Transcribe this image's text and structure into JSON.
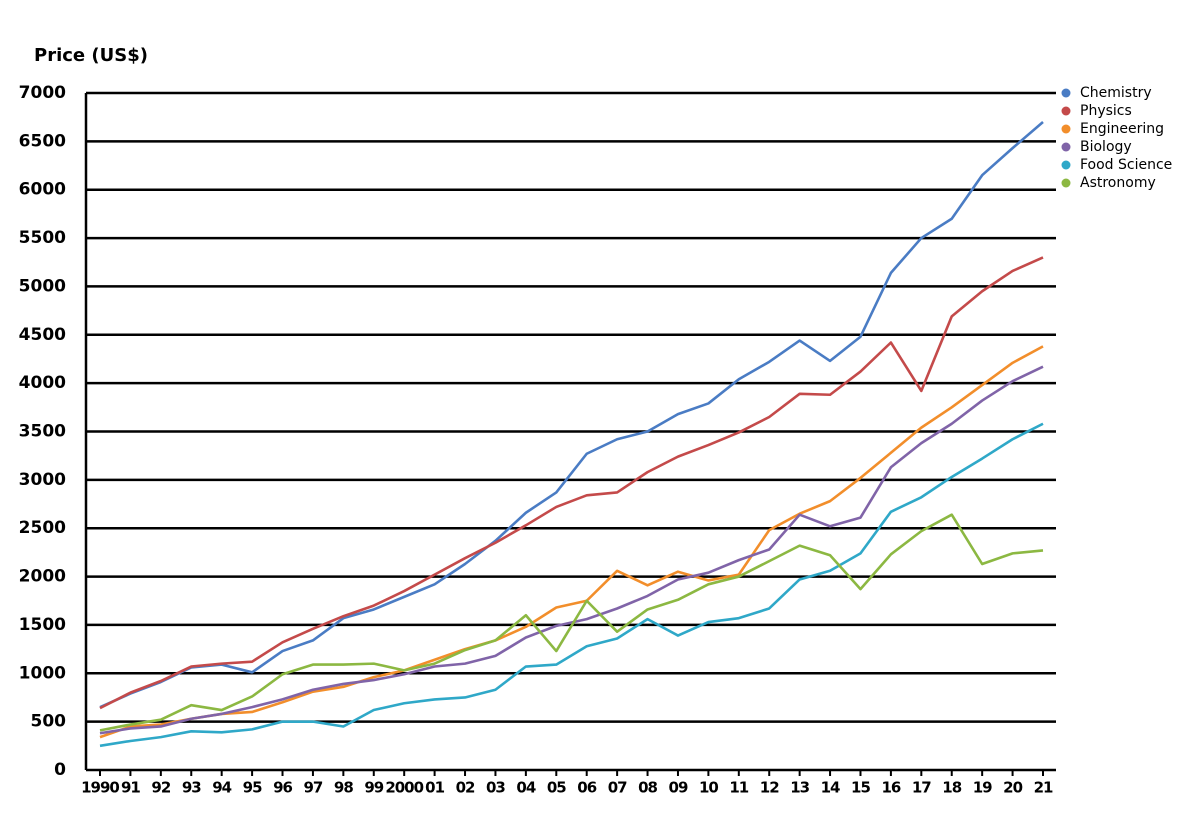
{
  "chart_data": {
    "type": "line",
    "y_label": "Price (US$)",
    "categories": [
      "1990",
      "91",
      "92",
      "93",
      "94",
      "95",
      "96",
      "97",
      "98",
      "99",
      "2000",
      "01",
      "02",
      "03",
      "04",
      "05",
      "06",
      "07",
      "08",
      "09",
      "10",
      "11",
      "12",
      "13",
      "14",
      "15",
      "16",
      "17",
      "18",
      "19",
      "20",
      "21"
    ],
    "ylim": [
      0,
      7000
    ],
    "yticks": [
      0,
      500,
      1000,
      1500,
      2000,
      2500,
      3000,
      3500,
      4000,
      4500,
      5000,
      5500,
      6000,
      6500,
      7000
    ],
    "grid": true,
    "legend": "top-right",
    "series": [
      {
        "name": "Chemistry",
        "color": "#4a7cc4",
        "values": [
          650,
          790,
          910,
          1060,
          1090,
          1010,
          1230,
          1340,
          1570,
          1660,
          1790,
          1920,
          2130,
          2370,
          2660,
          2870,
          3270,
          3420,
          3500,
          3680,
          3790,
          4040,
          4220,
          4440,
          4230,
          4480,
          5140,
          5500,
          5700,
          6150,
          6430,
          6700
        ]
      },
      {
        "name": "Physics",
        "color": "#c44a4a",
        "values": [
          640,
          800,
          920,
          1070,
          1100,
          1120,
          1320,
          1460,
          1590,
          1700,
          1850,
          2020,
          2190,
          2350,
          2530,
          2720,
          2840,
          2870,
          3080,
          3240,
          3360,
          3490,
          3650,
          3890,
          3880,
          4120,
          4420,
          3920,
          4690,
          4950,
          5160,
          5300
        ]
      },
      {
        "name": "Engineering",
        "color": "#f28e2b",
        "values": [
          340,
          450,
          470,
          530,
          580,
          600,
          700,
          810,
          860,
          960,
          1030,
          1140,
          1250,
          1340,
          1480,
          1680,
          1750,
          2060,
          1910,
          2050,
          1960,
          2020,
          2480,
          2650,
          2780,
          3020,
          3280,
          3540,
          3750,
          3980,
          4210,
          4380
        ]
      },
      {
        "name": "Biology",
        "color": "#8064a8",
        "values": [
          380,
          430,
          450,
          530,
          580,
          650,
          730,
          830,
          890,
          930,
          990,
          1070,
          1100,
          1180,
          1370,
          1490,
          1560,
          1670,
          1800,
          1970,
          2040,
          2170,
          2280,
          2640,
          2520,
          2610,
          3130,
          3380,
          3580,
          3820,
          4020,
          4170
        ]
      },
      {
        "name": "Food Science",
        "color": "#2fa8c8",
        "values": [
          250,
          300,
          340,
          400,
          390,
          420,
          500,
          500,
          450,
          620,
          690,
          730,
          750,
          830,
          1070,
          1090,
          1280,
          1360,
          1560,
          1390,
          1530,
          1570,
          1670,
          1970,
          2060,
          2240,
          2670,
          2820,
          3030,
          3220,
          3420,
          3580
        ]
      },
      {
        "name": "Astronomy",
        "color": "#8cb842",
        "values": [
          410,
          470,
          520,
          670,
          620,
          760,
          990,
          1090,
          1090,
          1100,
          1030,
          1100,
          1240,
          1340,
          1600,
          1230,
          1750,
          1430,
          1660,
          1760,
          1920,
          2000,
          2160,
          2320,
          2220,
          1870,
          2230,
          2470,
          2640,
          2130,
          2240,
          2270
        ]
      }
    ]
  }
}
